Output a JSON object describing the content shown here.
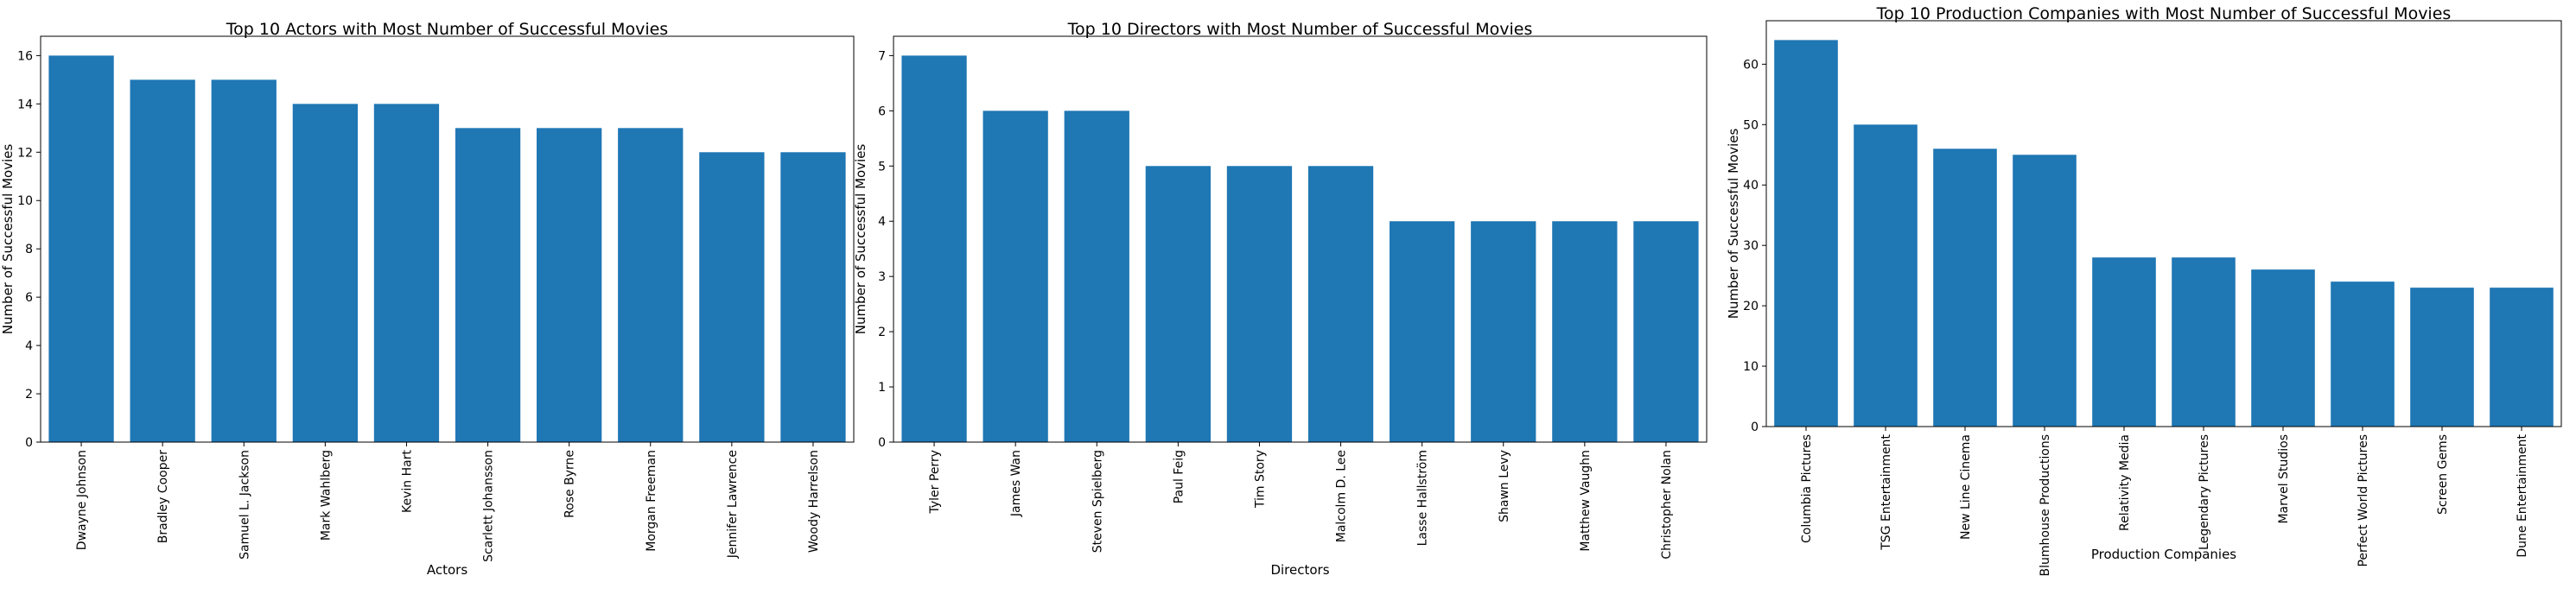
{
  "chart_data": [
    {
      "type": "bar",
      "title": "Top 10 Actors with Most Number of Successful Movies",
      "xlabel": "Actors",
      "ylabel": "Number of Successful Movies",
      "categories": [
        "Dwayne Johnson",
        "Bradley Cooper",
        "Samuel L. Jackson",
        "Mark Wahlberg",
        "Kevin Hart",
        "Scarlett Johansson",
        "Rose Byrne",
        "Morgan Freeman",
        "Jennifer Lawrence",
        "Woody Harrelson"
      ],
      "values": [
        16,
        15,
        15,
        14,
        14,
        13,
        13,
        13,
        12,
        12
      ],
      "ylim": [
        0,
        16.8
      ],
      "yticks": [
        0,
        2,
        4,
        6,
        8,
        10,
        12,
        14,
        16
      ],
      "bar_color": "#1f77b4",
      "grid": false
    },
    {
      "type": "bar",
      "title": "Top 10 Directors with Most Number of Successful Movies",
      "xlabel": "Directors",
      "ylabel": "Number of Successful Movies",
      "categories": [
        "Tyler Perry",
        "James Wan",
        "Steven Spielberg",
        "Paul Feig",
        "Tim Story",
        "Malcolm D. Lee",
        "Lasse Hallström",
        "Shawn Levy",
        "Matthew Vaughn",
        "Christopher Nolan"
      ],
      "values": [
        7,
        6,
        6,
        5,
        5,
        5,
        4,
        4,
        4,
        4
      ],
      "ylim": [
        0,
        7.35
      ],
      "yticks": [
        0,
        1,
        2,
        3,
        4,
        5,
        6,
        7
      ],
      "bar_color": "#1f77b4",
      "grid": false
    },
    {
      "type": "bar",
      "title": "Top 10 Production Companies with Most Number of Successful Movies",
      "xlabel": "Production Companies",
      "ylabel": "Number of Successful Movies",
      "categories": [
        "Columbia Pictures",
        "TSG Entertainment",
        "New Line Cinema",
        "Blumhouse Productions",
        "Relativity Media",
        "Legendary Pictures",
        "Marvel Studios",
        "Perfect World Pictures",
        "Screen Gems",
        "Dune Entertainment"
      ],
      "values": [
        64,
        50,
        46,
        45,
        28,
        28,
        26,
        24,
        23,
        23
      ],
      "ylim": [
        0,
        67.2
      ],
      "yticks": [
        0,
        10,
        20,
        30,
        40,
        50,
        60
      ],
      "bar_color": "#1f77b4",
      "grid": false
    }
  ]
}
